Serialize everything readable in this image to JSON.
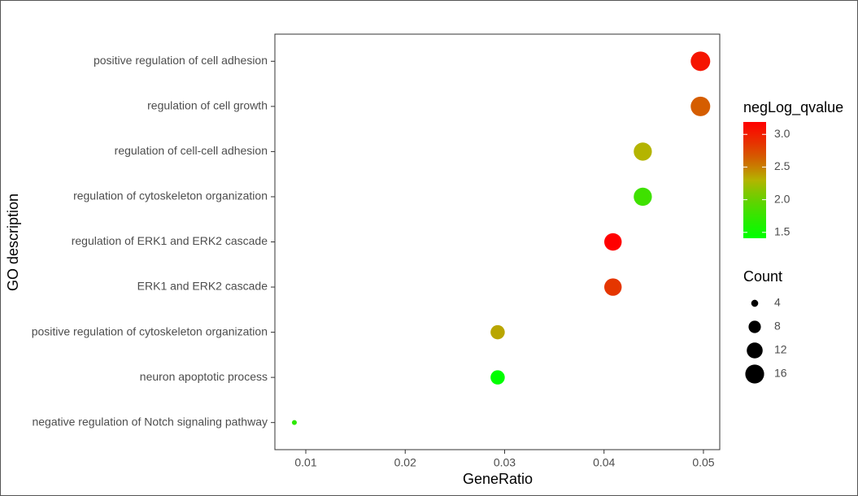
{
  "chart_data": {
    "type": "scatter",
    "x_label": "GeneRatio",
    "y_label": "GO description",
    "categories": [
      "positive regulation of cell adhesion",
      "regulation of cell growth",
      "regulation of cell-cell adhesion",
      "regulation of cytoskeleton organization",
      "regulation of ERK1 and ERK2 cascade",
      "ERK1 and ERK2 cascade",
      "positive regulation of cytoskeleton organization",
      "neuron apoptotic process",
      "negative regulation of Notch signaling pathway"
    ],
    "values": [
      0.0497,
      0.0497,
      0.0439,
      0.0439,
      0.0409,
      0.0409,
      0.0293,
      0.0293,
      0.00885
    ],
    "sizes": [
      17,
      17,
      15,
      15,
      14,
      14,
      10,
      10,
      3
    ],
    "color_values": [
      3.05,
      2.65,
      2.3,
      1.8,
      3.19,
      2.85,
      2.35,
      1.41,
      1.7
    ],
    "xlim": [
      0.00689,
      0.05164
    ],
    "xticks": [
      0.01,
      0.02,
      0.03,
      0.04,
      0.05
    ],
    "color_legend": {
      "title": "negLog_qvalue",
      "low": "#00ff00",
      "high": "#ff0000",
      "ticks": [
        1.5,
        {
          "value": 2,
          "label": "2.0"
        },
        2.5,
        {
          "value": 3,
          "label": "3.0"
        }
      ]
    },
    "size_legend": {
      "title": "Count",
      "values": [
        4,
        8,
        12,
        16
      ]
    }
  }
}
